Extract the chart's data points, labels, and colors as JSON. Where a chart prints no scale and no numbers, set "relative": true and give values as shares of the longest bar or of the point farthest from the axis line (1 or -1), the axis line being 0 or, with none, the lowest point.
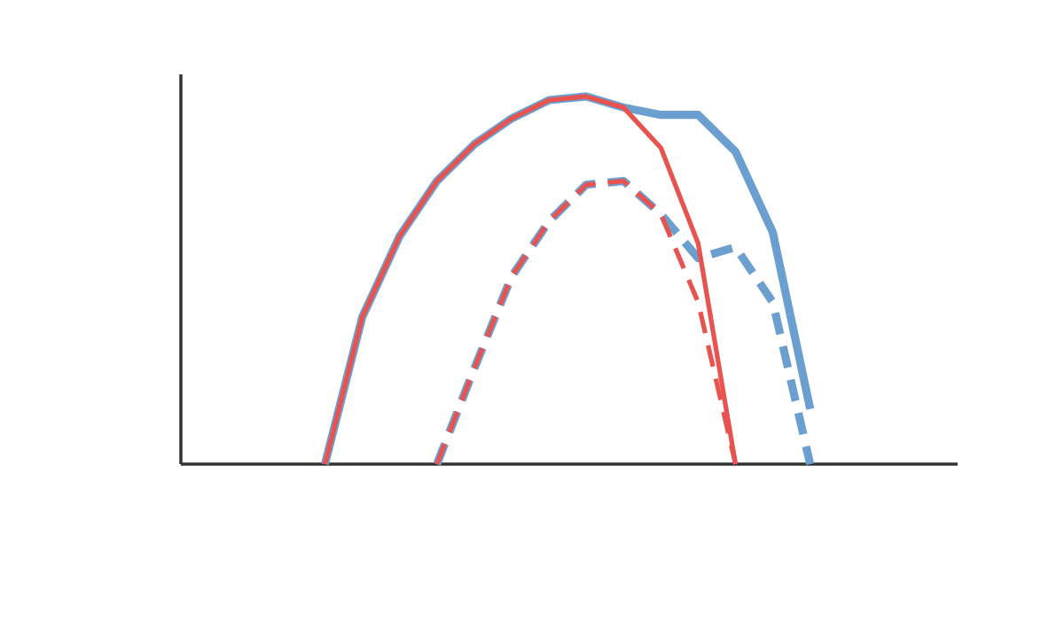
{
  "chart_data": {
    "type": "line",
    "relative": true,
    "categories": [
      null,
      null,
      null,
      null,
      null,
      null,
      null,
      null,
      null,
      null,
      null,
      null,
      null,
      null
    ],
    "series": [
      {
        "color": "#e8534f",
        "line_style": "solid",
        "values": [
          0,
          0.4,
          0.62,
          0.77,
          0.87,
          0.94,
          0.99,
          1,
          0.97,
          0.86,
          0.6,
          0,
          null,
          null
        ]
      },
      {
        "color": "#6a9fcf",
        "line_style": "solid",
        "values": [
          0,
          0.4,
          0.62,
          0.77,
          0.87,
          0.94,
          0.99,
          1,
          0.97,
          0.95,
          0.95,
          0.85,
          0.63,
          0.15
        ]
      },
      {
        "color": "#e8534f",
        "line_style": "dashed",
        "values": [
          null,
          null,
          null,
          0,
          0.26,
          0.51,
          0.66,
          0.76,
          0.77,
          0.68,
          0.44,
          0,
          null,
          null
        ]
      },
      {
        "color": "#6a9fcf",
        "line_style": "dashed",
        "values": [
          null,
          null,
          null,
          0,
          0.26,
          0.51,
          0.66,
          0.76,
          0.77,
          0.68,
          0.56,
          0.59,
          0.44,
          0
        ]
      }
    ]
  }
}
